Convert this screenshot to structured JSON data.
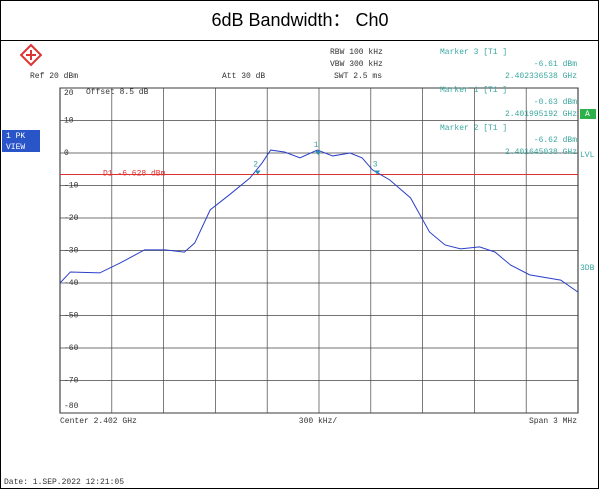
{
  "header": {
    "title": "6dB Bandwidth： Ch0"
  },
  "settings": {
    "rbw": "RBW 100 kHz",
    "vbw": "VBW 300 kHz",
    "swt": "SWT 2.5 ms",
    "ref": "Ref 20 dBm",
    "att": "Att 30 dB",
    "offset": "Offset 8.5 dB"
  },
  "side": {
    "trace_box": [
      "1 PK",
      "VIEW"
    ],
    "a_box": "A",
    "lvl": "LVL",
    "db3": "3DB"
  },
  "footer": {
    "center": "Center 2.402 GHz",
    "div": "300 kHz/",
    "span": "Span 3 MHz",
    "date": "Date: 1.SEP.2022 12:21:05"
  },
  "chart_data": {
    "type": "line",
    "x": [
      2.4005,
      2.40056,
      2.40073,
      2.40085,
      2.40099,
      2.40111,
      2.40122,
      2.40128,
      2.40137,
      2.40148,
      2.4016,
      2.40167,
      2.40172,
      2.4018,
      2.40189,
      2.40199,
      2.40208,
      2.40218,
      2.40225,
      2.40231,
      2.40241,
      2.40253,
      2.40264,
      2.40273,
      2.40282,
      2.40293,
      2.40302,
      2.40311,
      2.40322,
      2.4034,
      2.4035
    ],
    "series": [
      {
        "color": "#2a3fc8",
        "values": [
          -40,
          -36.6,
          -36.9,
          -33.8,
          -29.8,
          -29.8,
          -30.5,
          -27.7,
          -17.5,
          -12.9,
          -7.7,
          -3.1,
          0.9,
          0.3,
          -1.5,
          0.9,
          -0.9,
          0,
          -1.5,
          -5.2,
          -8.3,
          -13.8,
          -24.3,
          -28.3,
          -29.5,
          -28.9,
          -30.5,
          -34.5,
          -37.5,
          -39.1,
          -42.8
        ]
      }
    ],
    "xlim": [
      2.4005,
      2.4035
    ],
    "ylim": [
      -80,
      20
    ],
    "yticks": [
      20,
      10,
      0,
      -10,
      -20,
      -30,
      -40,
      -50,
      -60,
      -70,
      -80
    ],
    "xgrid_divisions": 10,
    "grid": true,
    "display_line": {
      "label": "D1 -6.628 dBm",
      "value": -6.628,
      "color": "#e03030"
    },
    "markers": [
      {
        "name": "3",
        "title": "Marker 3 [T1 ]",
        "level_label": "-6.61 dBm",
        "freq_label": "2.402336538 GHz",
        "x": 2.402336538,
        "y": -6.61
      },
      {
        "name": "1",
        "title": "Marker 1 [T1 ]",
        "level_label": "-0.63 dBm",
        "freq_label": "2.401995192 GHz",
        "x": 2.401995192,
        "y": -0.63
      },
      {
        "name": "2",
        "title": "Marker 2 [T1 ]",
        "level_label": "-6.62 dBm",
        "freq_label": "2.401645038 GHz",
        "x": 2.401645038,
        "y": -6.62
      }
    ]
  }
}
